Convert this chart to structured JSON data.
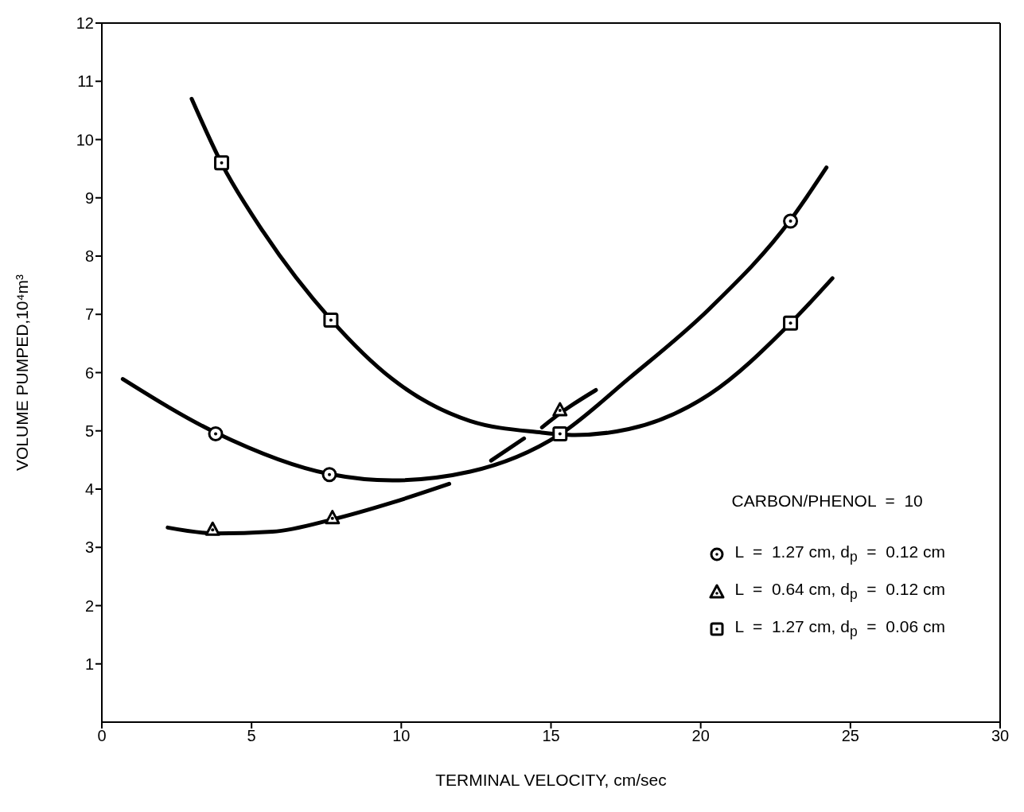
{
  "chart_data": {
    "type": "scatter",
    "xlabel": "TERMINAL VELOCITY,  cm/sec",
    "ylabel": "VOLUME PUMPED,10⁴m³",
    "xlim": [
      0,
      30
    ],
    "xticks": [
      0,
      5,
      10,
      15,
      20,
      25,
      30
    ],
    "ylim": [
      0,
      12
    ],
    "yticks": [
      1,
      2,
      3,
      4,
      5,
      6,
      7,
      8,
      9,
      10,
      11,
      12
    ],
    "grid": false,
    "legend": "bottom right",
    "annotations": [
      "CARBON/PHENOL  =  10"
    ],
    "series": [
      {
        "type": "line",
        "color": "#000000",
        "x": [
          0.7,
          3.8,
          7.6,
          9.7,
          12.3,
          15.3,
          17.6,
          20.3,
          23.0,
          24.2
        ],
        "values": [
          5.89,
          4.97,
          4.26,
          4.15,
          4.3,
          4.94,
          5.9,
          7.1,
          8.62,
          9.52
        ]
      },
      {
        "type": "line",
        "color": "#000000",
        "x": [
          2.2,
          3.8,
          5.7,
          7.7,
          9.7,
          11.6,
          12.3,
          13.0,
          14.1,
          14.4,
          14.7,
          15.3,
          16.5
        ],
        "values": [
          3.34,
          3.24,
          3.27,
          3.48,
          3.77,
          4.09,
          null,
          4.49,
          4.87,
          null,
          5.06,
          5.3,
          5.7
        ]
      },
      {
        "type": "line",
        "color": "#000000",
        "x": [
          3.0,
          4.0,
          5.4,
          7.65,
          9.7,
          12.3,
          14.7,
          15.3,
          15.8,
          17.6,
          20.3,
          23.0,
          24.4
        ],
        "values": [
          10.7,
          9.59,
          8.41,
          6.91,
          5.89,
          5.17,
          4.97,
          4.94,
          4.93,
          5.03,
          5.63,
          6.85,
          7.62
        ]
      },
      {
        "name": "L  =  1.27 cm, d$_{p}$  =  0.12 cm",
        "marker": "circle",
        "color": "#000000",
        "x": [
          3.8,
          7.6,
          23.0
        ],
        "values": [
          4.95,
          4.25,
          8.6
        ]
      },
      {
        "name": "L  =  0.64 cm, d$_{p}$  =  0.12 cm",
        "marker": "triangle",
        "color": "#000000",
        "x": [
          3.7,
          7.7,
          15.3
        ],
        "values": [
          3.3,
          3.5,
          5.35
        ]
      },
      {
        "name": "L  =  1.27 cm, d$_{p}$  =  0.06 cm",
        "marker": "square",
        "color": "#000000",
        "x": [
          4.0,
          7.65,
          15.3,
          23.0
        ],
        "values": [
          9.6,
          6.9,
          4.95,
          6.85
        ]
      }
    ]
  }
}
